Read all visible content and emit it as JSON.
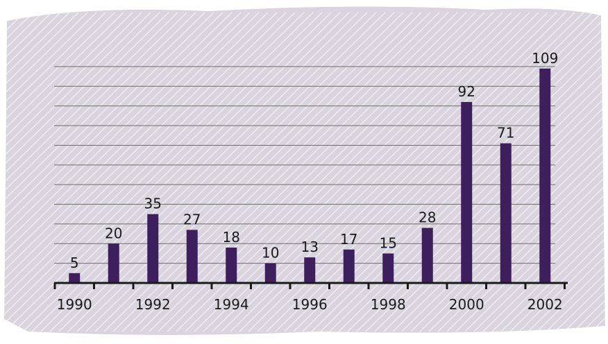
{
  "chart_data": {
    "type": "bar",
    "categories": [
      "1990",
      "1991",
      "1992",
      "1993",
      "1994",
      "1995",
      "1996",
      "1997",
      "1998",
      "1999",
      "2000",
      "2001",
      "2002"
    ],
    "values": [
      5,
      20,
      35,
      27,
      18,
      10,
      13,
      17,
      15,
      28,
      92,
      71,
      109
    ],
    "data_labels": [
      "5",
      "20",
      "35",
      "27",
      "18",
      "10",
      "13",
      "17",
      "15",
      "28",
      "92",
      "71",
      "109"
    ],
    "x_tick_labels": [
      "1990",
      "1992",
      "1994",
      "1996",
      "1998",
      "2000",
      "2002"
    ],
    "ylim": [
      0,
      110
    ],
    "grid": true,
    "grid_step": 10,
    "colors": {
      "bar": "#3d1f5e",
      "background": "#d9d4de",
      "gridline": "#6e6e6e",
      "axis": "#1a1a1a"
    }
  }
}
